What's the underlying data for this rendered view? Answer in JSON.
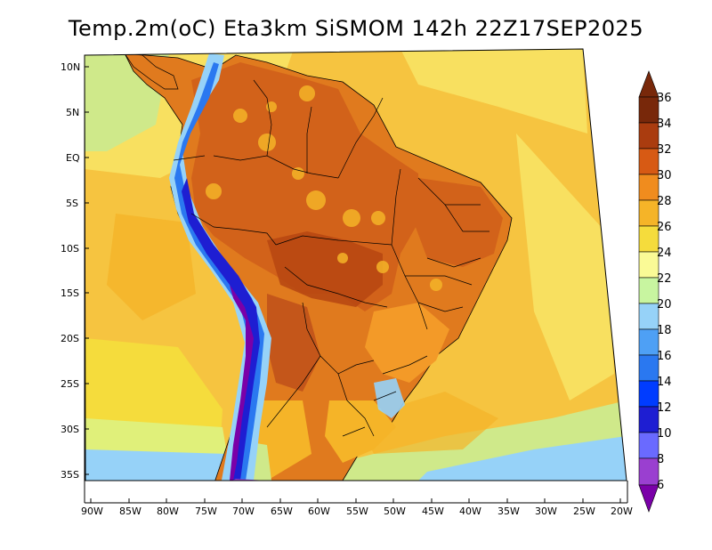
{
  "title": "Temp.2m(oC) Eta3km SiSMOM 142h 22Z17SEP2025",
  "lat_labels": [
    "10N",
    "5N",
    "EQ",
    "5S",
    "10S",
    "15S",
    "20S",
    "25S",
    "30S",
    "35S"
  ],
  "lon_labels": [
    "90W",
    "85W",
    "80W",
    "75W",
    "70W",
    "65W",
    "60W",
    "55W",
    "50W",
    "45W",
    "40W",
    "35W",
    "30W",
    "25W",
    "20W"
  ],
  "colorbar": {
    "ticks": [
      "6",
      "8",
      "10",
      "12",
      "14",
      "16",
      "18",
      "20",
      "22",
      "24",
      "26",
      "28",
      "30",
      "32",
      "34",
      "36"
    ],
    "colors": [
      "#7a00a8",
      "#9a3fd0",
      "#6a6aff",
      "#1e1ed2",
      "#003cff",
      "#2a78f0",
      "#4ea0f5",
      "#96d2f8",
      "#c8f5a0",
      "#fafa96",
      "#f5dc3c",
      "#f5b428",
      "#f08c1e",
      "#d75a14",
      "#aa3c0f",
      "#78280a"
    ]
  }
}
